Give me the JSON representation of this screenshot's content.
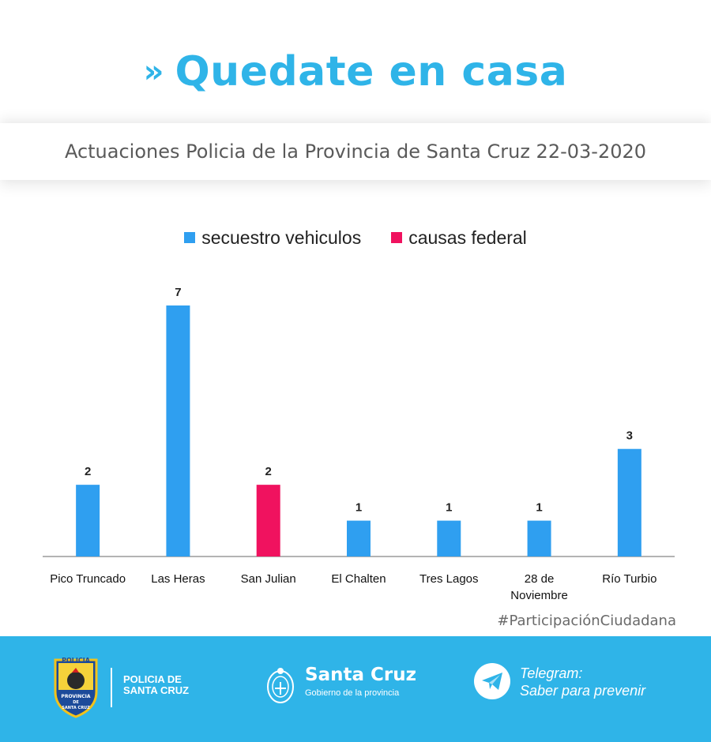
{
  "header": {
    "chevron": "»",
    "title": "Quedate en casa",
    "subtitle": "Actuaciones Policia de la Provincia de Santa Cruz 22-03-2020"
  },
  "legend": {
    "items": [
      {
        "label": "secuestro vehiculos",
        "color": "#2f9ff0"
      },
      {
        "label": "causas federal",
        "color": "#f0125f"
      }
    ]
  },
  "chart_data": {
    "type": "bar",
    "title": "",
    "xlabel": "",
    "ylabel": "",
    "ylim": [
      0,
      7
    ],
    "grid": false,
    "legend": "top-center",
    "categories": [
      "Pico Truncado",
      "Las Heras",
      "San Julian",
      "El Chalten",
      "Tres Lagos",
      "28 de Noviembre",
      "Río Turbio"
    ],
    "category_lines": [
      [
        "Pico Truncado"
      ],
      [
        "Las Heras"
      ],
      [
        "San Julian"
      ],
      [
        "El Chalten"
      ],
      [
        "Tres Lagos"
      ],
      [
        "28 de",
        "Noviembre"
      ],
      [
        "Río Turbio"
      ]
    ],
    "series": [
      {
        "name": "secuestro vehiculos",
        "color": "#2f9ff0",
        "values": [
          2,
          7,
          0,
          1,
          1,
          1,
          3
        ]
      },
      {
        "name": "causas federal",
        "color": "#f0125f",
        "values": [
          0,
          0,
          2,
          0,
          0,
          0,
          0
        ]
      }
    ]
  },
  "hashtag": "#ParticipaciónCiudadana",
  "footer": {
    "badge_top": "POLICIA",
    "badge_bottom_1": "PROVINCIA",
    "badge_bottom_2": "DE",
    "badge_bottom_3": "SANTA CRUZ",
    "police_line1": "POLICIA DE",
    "police_line2": "SANTA CRUZ",
    "gov_name": "Santa Cruz",
    "gov_sub": "Gobierno de la provincia",
    "telegram_line1": "Telegram:",
    "telegram_line2": "Saber para prevenir"
  }
}
